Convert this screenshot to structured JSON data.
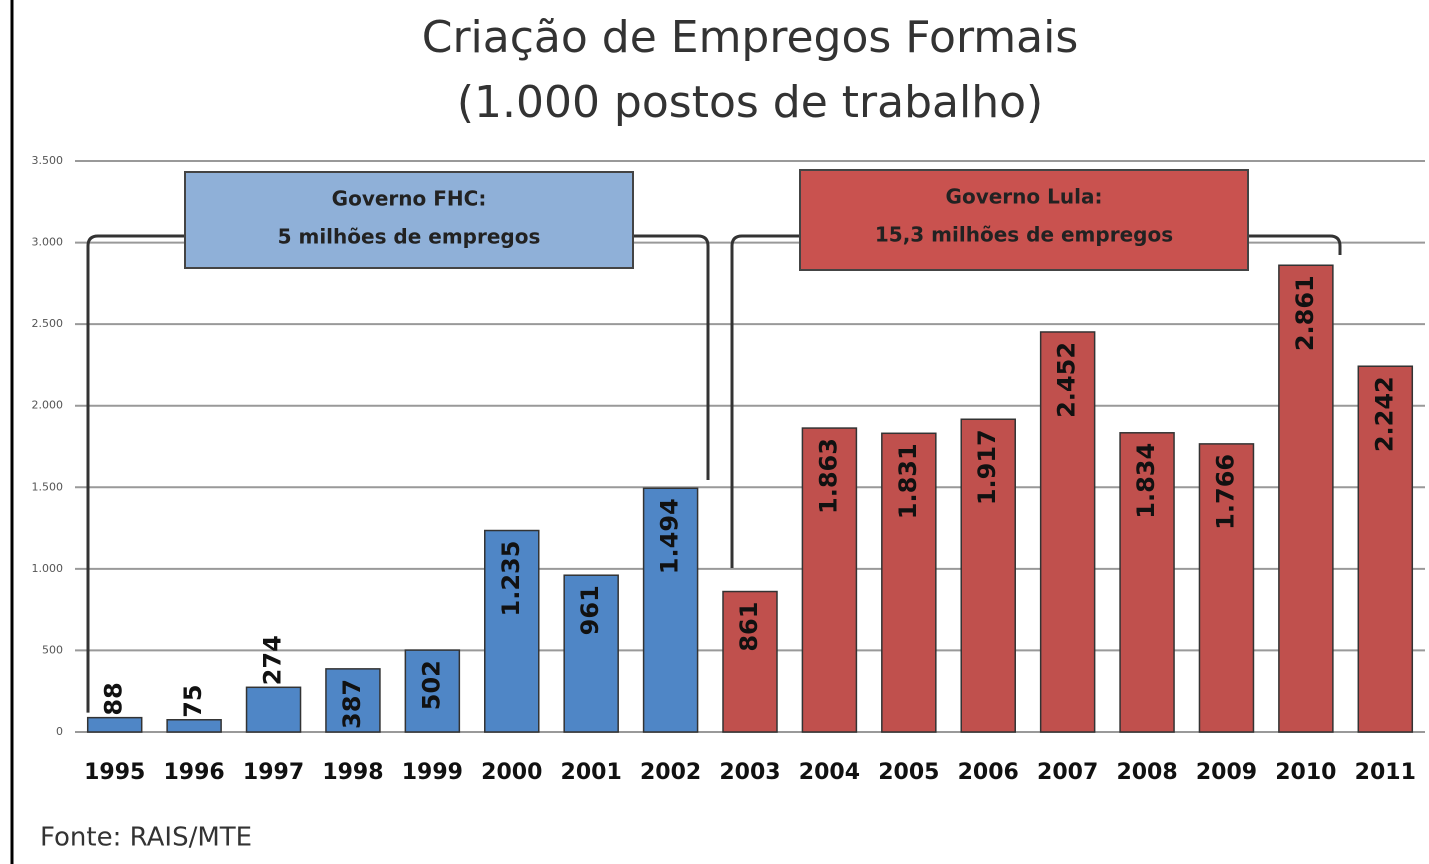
{
  "chart_data": {
    "type": "bar",
    "title": "Criação de Empregos Formais",
    "subtitle": "(1.000 postos de trabalho)",
    "categories": [
      "1995",
      "1996",
      "1997",
      "1998",
      "1999",
      "2000",
      "2001",
      "2002",
      "2003",
      "2004",
      "2005",
      "2006",
      "2007",
      "2008",
      "2009",
      "2010",
      "2011"
    ],
    "values": [
      88,
      75,
      274,
      387,
      502,
      1235,
      961,
      1494,
      861,
      1863,
      1831,
      1917,
      2452,
      1834,
      1766,
      2861,
      2242
    ],
    "value_labels": [
      "88",
      "75",
      "274",
      "387",
      "502",
      "1.235",
      "961",
      "1.494",
      "861",
      "1.863",
      "1.831",
      "1.917",
      "2.452",
      "1.834",
      "1.766",
      "2.861",
      "2.242"
    ],
    "colors": [
      "#4f86c6",
      "#4f86c6",
      "#4f86c6",
      "#4f86c6",
      "#4f86c6",
      "#4f86c6",
      "#4f86c6",
      "#4f86c6",
      "#c0504d",
      "#c0504d",
      "#c0504d",
      "#c0504d",
      "#c0504d",
      "#c0504d",
      "#c0504d",
      "#c0504d",
      "#c0504d"
    ],
    "ylim": [
      0,
      3500
    ],
    "yticks": [
      0,
      500,
      {
        "value": 1000,
        "label": "1.000"
      },
      {
        "value": 1500,
        "label": "1.500"
      },
      {
        "value": 2000,
        "label": "2.000"
      },
      {
        "value": 2500,
        "label": "2.500"
      },
      {
        "value": 3000,
        "label": "3.000"
      },
      {
        "value": 3500,
        "label": "3.500"
      }
    ],
    "grid": true,
    "annotations": [
      {
        "lines": [
          "Governo FHC:",
          "5 milhões de empregos"
        ],
        "color": "#8fb0d8"
      },
      {
        "lines": [
          "Governo Lula:",
          "15,3 milhões de empregos"
        ],
        "color": "#c9524f"
      }
    ],
    "source": "Fonte: RAIS/MTE"
  }
}
